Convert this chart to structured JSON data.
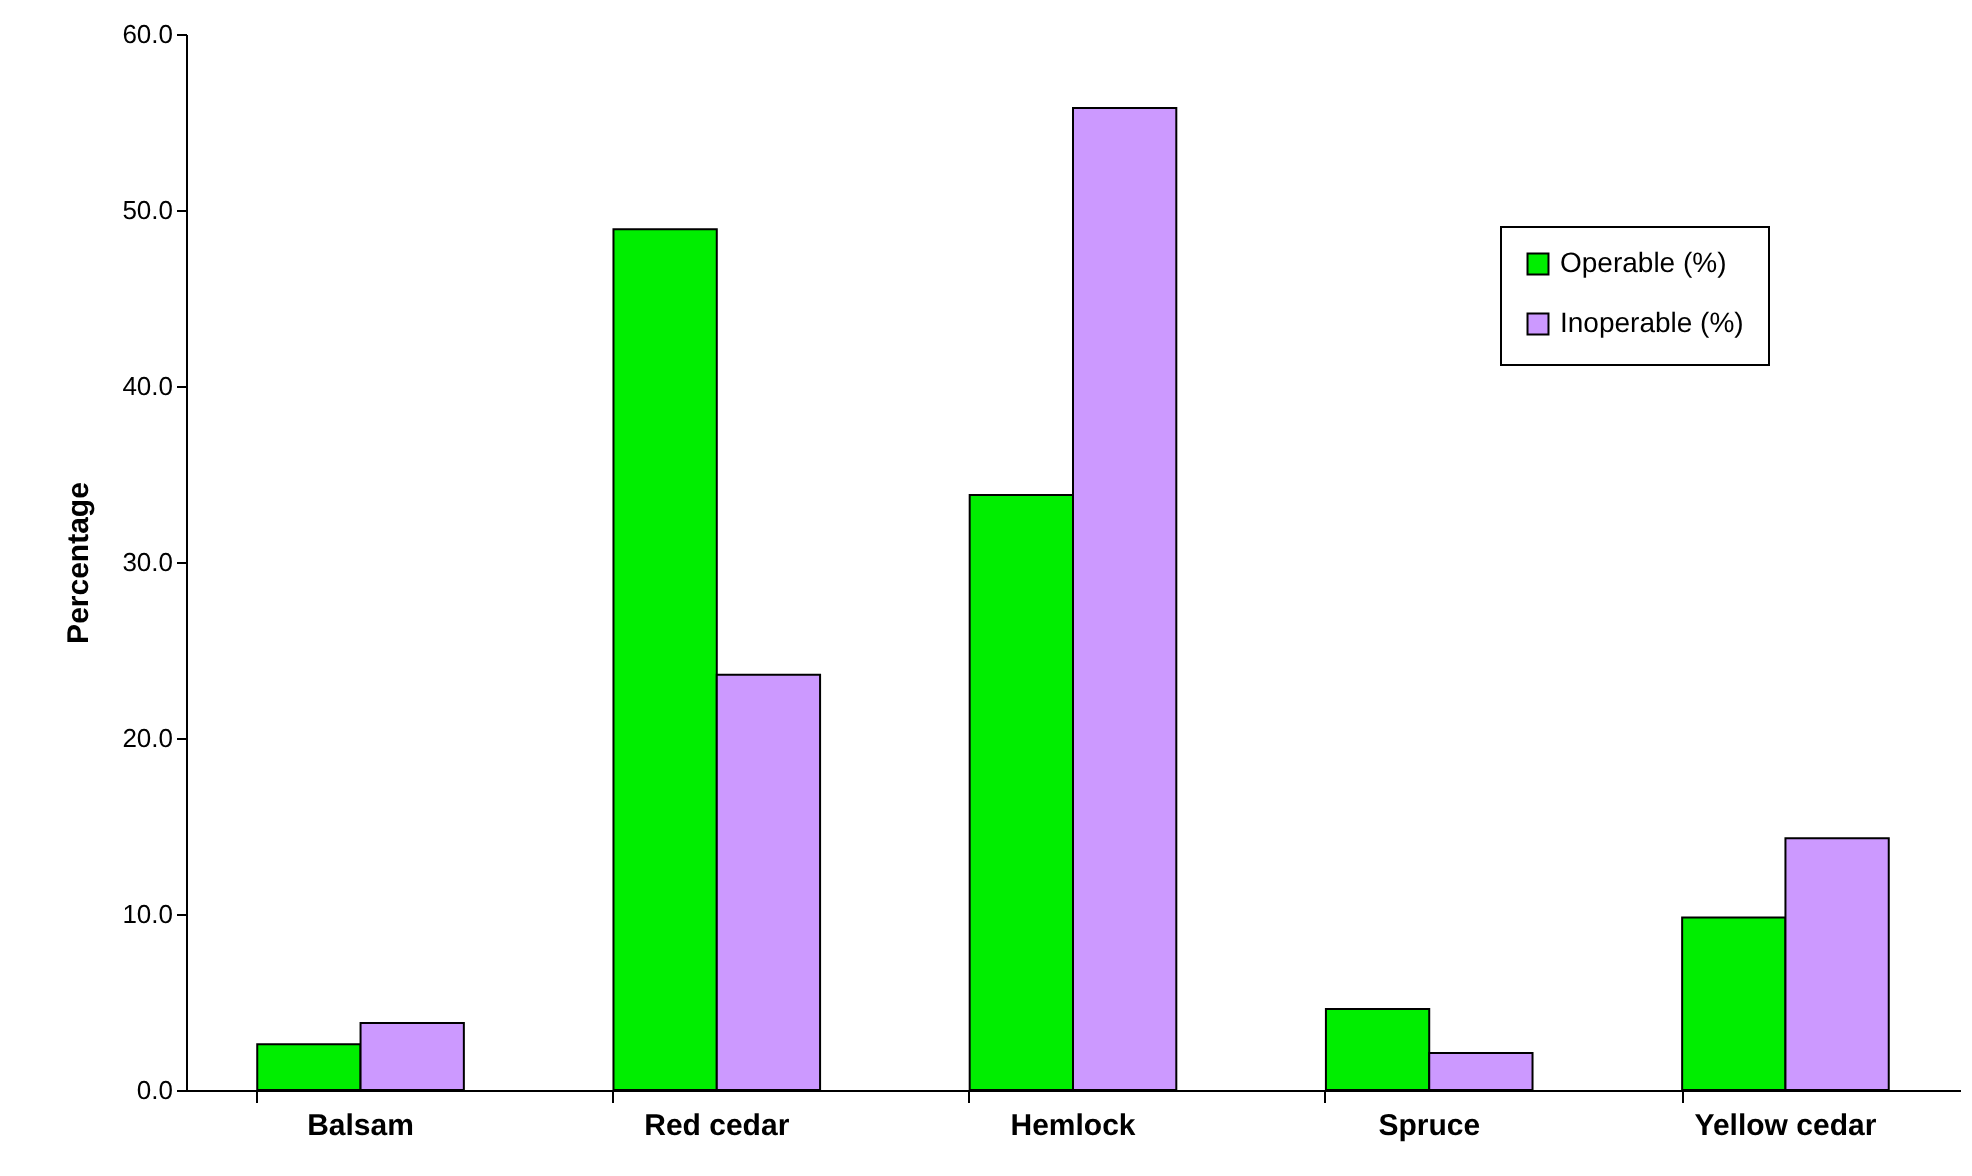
{
  "chart_data": {
    "type": "bar",
    "ylabel": "Percentage",
    "categories": [
      "Balsam",
      "Red cedar",
      "Hemlock",
      "Spruce",
      "Yellow cedar"
    ],
    "series": [
      {
        "name": "Operable (%)",
        "color": "#00ee00",
        "values": [
          2.6,
          48.9,
          33.8,
          4.6,
          9.8
        ]
      },
      {
        "name": "Inoperable (%)",
        "color": "#cc99ff",
        "values": [
          3.8,
          23.6,
          55.8,
          2.1,
          14.3
        ]
      }
    ],
    "ylim": [
      0,
      60
    ],
    "yticks": [
      {
        "value": 0,
        "label": "0.0"
      },
      {
        "value": 10,
        "label": "10.0"
      },
      {
        "value": 20,
        "label": "20.0"
      },
      {
        "value": 30,
        "label": "30.0"
      },
      {
        "value": 40,
        "label": "40.0"
      },
      {
        "value": 50,
        "label": "50.0"
      },
      {
        "value": 60,
        "label": "60.0"
      }
    ],
    "grid": false,
    "legend": "top right"
  }
}
